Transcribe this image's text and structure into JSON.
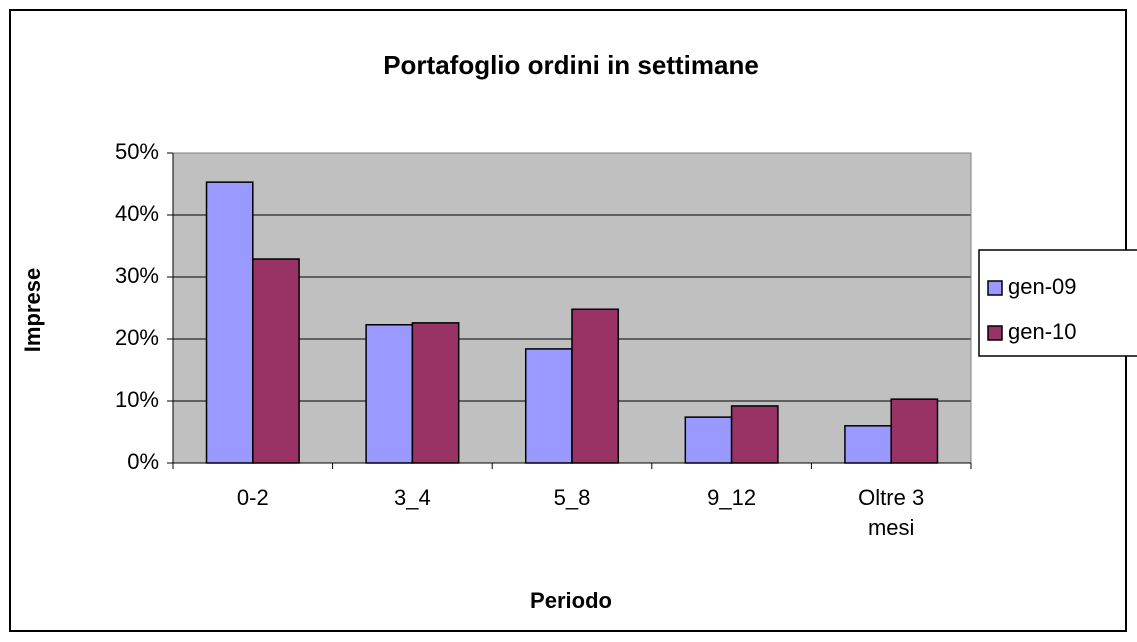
{
  "chart_data": {
    "type": "bar",
    "title": "Portafoglio ordini in settimane",
    "x_label": "Periodo",
    "y_label": "Imprese",
    "categories": [
      "0-2",
      "3_4",
      "5_8",
      "9_12",
      "Oltre 3 mesi"
    ],
    "series": [
      {
        "name": "gen-09",
        "color": "#9999ff",
        "values": [
          45.3,
          22.3,
          18.4,
          7.4,
          6.0
        ]
      },
      {
        "name": "gen-10",
        "color": "#993366",
        "values": [
          32.9,
          22.6,
          24.8,
          9.2,
          10.3
        ]
      }
    ],
    "ylim": [
      0,
      50
    ],
    "yticks": [
      {
        "value": 0,
        "label": "0%"
      },
      {
        "value": 10,
        "label": "10%"
      },
      {
        "value": 20,
        "label": "20%"
      },
      {
        "value": 30,
        "label": "30%"
      },
      {
        "value": 40,
        "label": "40%"
      },
      {
        "value": 50,
        "label": "50%"
      }
    ],
    "grid": true,
    "legend": "right"
  }
}
